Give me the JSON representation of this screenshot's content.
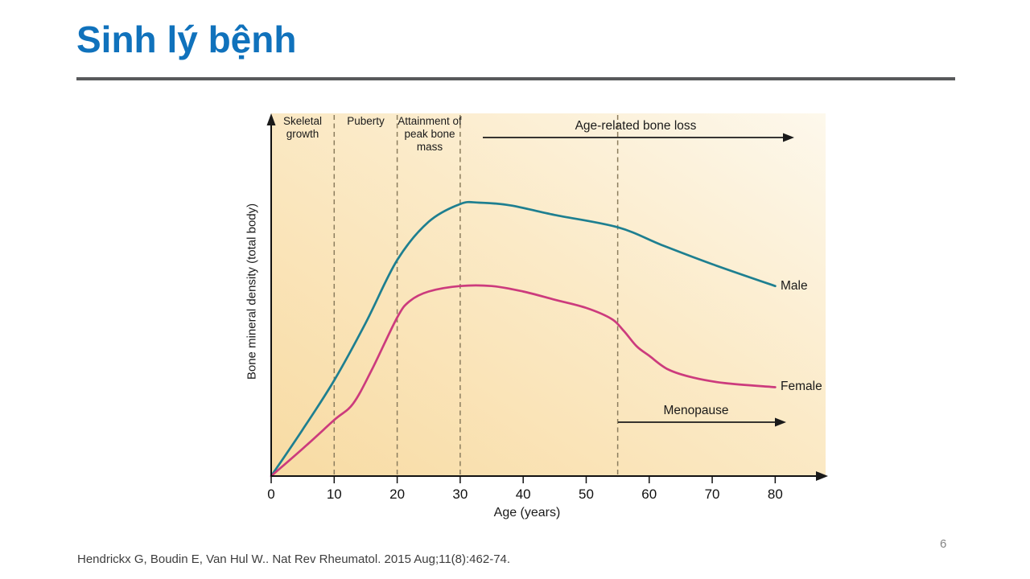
{
  "slide": {
    "title": "Sinh lý bệnh",
    "page_number": "6",
    "citation": "Hendrickx G, Boudin E, Van Hul W.. Nat Rev Rheumatol. 2015 Aug;11(8):462-74.",
    "title_color": "#1072bc",
    "rule_color": "#58595b"
  },
  "chart_data": {
    "type": "line",
    "title": "",
    "xlabel": "Age (years)",
    "ylabel": "Bone mineral density (total body)",
    "x_ticks": [
      0,
      10,
      20,
      30,
      40,
      50,
      60,
      70,
      80
    ],
    "xlim": [
      0,
      88
    ],
    "grid": false,
    "legend_position": "right-of-curve-ends",
    "y_scale_note": "unlabeled axis; values relative, male peak = 100",
    "dashed_guides_at_ages": [
      10,
      20,
      30,
      55
    ],
    "phase_labels": [
      {
        "label": "Skeletal growth",
        "age_range": [
          0,
          10
        ]
      },
      {
        "label": "Puberty",
        "age_range": [
          10,
          20
        ]
      },
      {
        "label": "Attainment of peak bone mass",
        "age_range": [
          20,
          30
        ]
      }
    ],
    "annotations": [
      {
        "label": "Age-related bone loss",
        "arrow_from_age": 33.5,
        "arrow_to_age": 82
      },
      {
        "label": "Menopause",
        "arrow_from_age": 55,
        "arrow_to_age": 81
      }
    ],
    "series": [
      {
        "name": "Male",
        "color": "#1e7f90",
        "points": [
          [
            0,
            0
          ],
          [
            5,
            17
          ],
          [
            10,
            35
          ],
          [
            15,
            56
          ],
          [
            20,
            79
          ],
          [
            25,
            93
          ],
          [
            30,
            99.5
          ],
          [
            33,
            100
          ],
          [
            38,
            99
          ],
          [
            45,
            95.5
          ],
          [
            55,
            91
          ],
          [
            62,
            84.5
          ],
          [
            70,
            77.5
          ],
          [
            80,
            69.5
          ]
        ]
      },
      {
        "name": "Female",
        "color": "#cc3b7d",
        "points": [
          [
            0,
            0
          ],
          [
            5,
            10
          ],
          [
            10,
            20.5
          ],
          [
            13,
            26.5
          ],
          [
            16,
            39
          ],
          [
            20,
            58
          ],
          [
            22,
            64
          ],
          [
            25,
            67.5
          ],
          [
            30,
            69.5
          ],
          [
            35,
            69.5
          ],
          [
            40,
            67.5
          ],
          [
            45,
            64.5
          ],
          [
            50,
            61.5
          ],
          [
            54,
            57.5
          ],
          [
            56,
            53
          ],
          [
            58,
            47.5
          ],
          [
            60,
            44
          ],
          [
            63,
            39
          ],
          [
            67,
            36
          ],
          [
            72,
            34
          ],
          [
            80,
            32.5
          ]
        ]
      }
    ],
    "panel_gradient": [
      "#f8dba3",
      "#fbeac7",
      "#fdf8ec"
    ]
  }
}
